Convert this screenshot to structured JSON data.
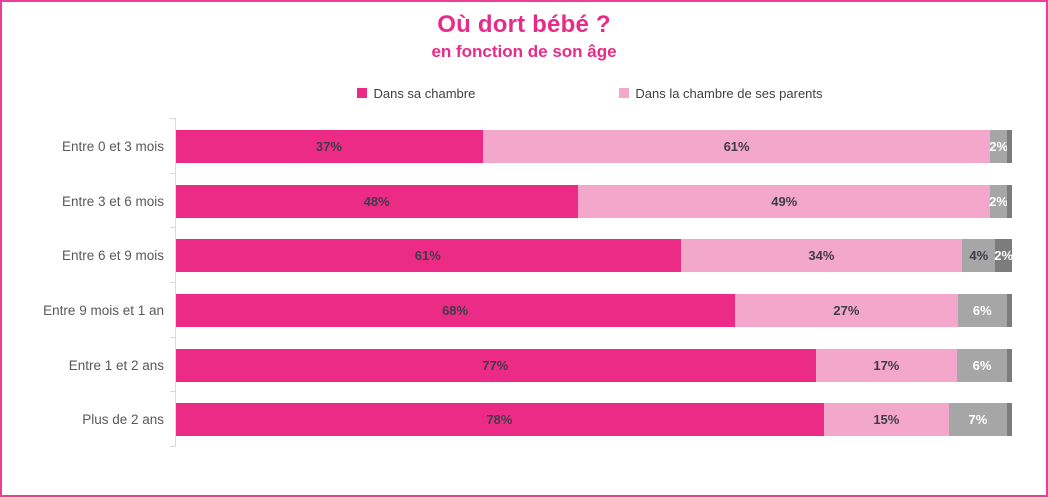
{
  "title": "Où dort bébé ?",
  "subtitle": "en fonction de son âge",
  "colors": {
    "accent": "#ea2a88",
    "border": "#ee3d96",
    "series1": "#ec2b87",
    "series2": "#f3a7ca",
    "series3": "#a6a6a6",
    "series4": "#7c7c7c",
    "label_dark": "#3f3c49",
    "label_light": "#ffffff",
    "axis_text": "#595959",
    "axis_line": "#d9d9d9"
  },
  "legend": [
    {
      "label": "Dans sa chambre",
      "color": "series1"
    },
    {
      "label": "Dans la chambre de ses parents",
      "color": "series2"
    }
  ],
  "chart_data": {
    "type": "bar",
    "orientation": "horizontal",
    "stacked": true,
    "title": "Où dort bébé ?",
    "subtitle": "en fonction de son âge",
    "value_unit": "%",
    "xlim": [
      0,
      100
    ],
    "grid": false,
    "legend_position": "top",
    "categories": [
      "Entre 0 et 3 mois",
      "Entre 3 et 6 mois",
      "Entre 6 et 9 mois",
      "Entre 9 mois et 1 an",
      "Entre 1 et 2 ans",
      "Plus de 2 ans"
    ],
    "series": [
      {
        "name": "Dans sa chambre",
        "color": "#ec2b87",
        "values": [
          37,
          48,
          61,
          68,
          77,
          78
        ]
      },
      {
        "name": "Dans la chambre de ses parents",
        "color": "#f3a7ca",
        "values": [
          61,
          49,
          34,
          27,
          17,
          15
        ]
      },
      {
        "name": "",
        "color": "#a6a6a6",
        "note": "gray series without legend entry",
        "values": [
          2,
          2,
          4,
          6,
          6,
          7
        ]
      },
      {
        "name": "",
        "color": "#7c7c7c",
        "note": "dark gray end sliver; only labeled for 'Entre 6 et 9 mois'",
        "values": [
          null,
          null,
          2,
          null,
          null,
          null
        ]
      }
    ],
    "rows": [
      {
        "label": "Entre 0 et 3 mois",
        "segments": [
          {
            "value": 37,
            "label": "37%",
            "color": "series1",
            "text": "dark"
          },
          {
            "value": 61,
            "label": "61%",
            "color": "series2",
            "text": "dark"
          },
          {
            "value": 2,
            "label": "2%",
            "color": "series3",
            "text": "light"
          },
          {
            "value": 0.6,
            "label": "",
            "color": "series4",
            "text": "light"
          }
        ]
      },
      {
        "label": "Entre 3 et 6 mois",
        "segments": [
          {
            "value": 48,
            "label": "48%",
            "color": "series1",
            "text": "dark"
          },
          {
            "value": 49,
            "label": "49%",
            "color": "series2",
            "text": "dark"
          },
          {
            "value": 2,
            "label": "2%",
            "color": "series3",
            "text": "light"
          },
          {
            "value": 0.6,
            "label": "",
            "color": "series4",
            "text": "light"
          }
        ]
      },
      {
        "label": "Entre 6 et 9 mois",
        "segments": [
          {
            "value": 61,
            "label": "61%",
            "color": "series1",
            "text": "dark"
          },
          {
            "value": 34,
            "label": "34%",
            "color": "series2",
            "text": "dark"
          },
          {
            "value": 4,
            "label": "4%",
            "color": "series3",
            "text": "dark"
          },
          {
            "value": 2,
            "label": "2%",
            "color": "series4",
            "text": "light"
          }
        ]
      },
      {
        "label": "Entre 9 mois et 1 an",
        "segments": [
          {
            "value": 68,
            "label": "68%",
            "color": "series1",
            "text": "dark"
          },
          {
            "value": 27,
            "label": "27%",
            "color": "series2",
            "text": "dark"
          },
          {
            "value": 6,
            "label": "6%",
            "color": "series3",
            "text": "light"
          },
          {
            "value": 0.6,
            "label": "",
            "color": "series4",
            "text": "light"
          }
        ]
      },
      {
        "label": "Entre 1 et 2 ans",
        "segments": [
          {
            "value": 77,
            "label": "77%",
            "color": "series1",
            "text": "dark"
          },
          {
            "value": 17,
            "label": "17%",
            "color": "series2",
            "text": "dark"
          },
          {
            "value": 6,
            "label": "6%",
            "color": "series3",
            "text": "light"
          },
          {
            "value": 0.6,
            "label": "",
            "color": "series4",
            "text": "light"
          }
        ]
      },
      {
        "label": "Plus de 2 ans",
        "segments": [
          {
            "value": 78,
            "label": "78%",
            "color": "series1",
            "text": "dark"
          },
          {
            "value": 15,
            "label": "15%",
            "color": "series2",
            "text": "dark"
          },
          {
            "value": 7,
            "label": "7%",
            "color": "series3",
            "text": "light"
          },
          {
            "value": 0.6,
            "label": "",
            "color": "series4",
            "text": "light"
          }
        ]
      }
    ]
  }
}
